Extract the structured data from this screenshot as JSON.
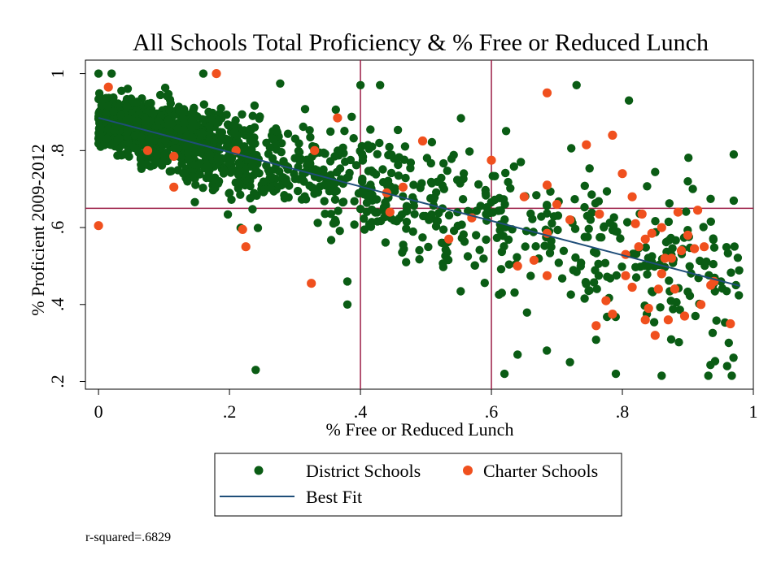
{
  "chart_data": {
    "type": "scatter",
    "title": "All Schools Total Proficiency & % Free or Reduced Lunch",
    "xlabel": "% Free or Reduced Lunch",
    "ylabel": "% Proficient 2009-2012",
    "xlim": [
      -0.02,
      1.0
    ],
    "ylim": [
      0.18,
      1.035
    ],
    "xticks": [
      0,
      0.2,
      0.4,
      0.6,
      0.8,
      1
    ],
    "xtick_labels": [
      "0",
      ".2",
      ".4",
      ".6",
      ".8",
      "1"
    ],
    "yticks": [
      0.2,
      0.4,
      0.6,
      0.8,
      1
    ],
    "ytick_labels": [
      ".2",
      ".4",
      ".6",
      ".8",
      "1"
    ],
    "reference_lines": {
      "x": [
        0.4,
        0.6
      ],
      "y": [
        0.65
      ]
    },
    "colors": {
      "district": "#0a5c14",
      "charter": "#f0501e",
      "fit": "#1f4e79",
      "reference": "#9c1e46"
    },
    "fit": {
      "name": "Best Fit",
      "x": [
        0,
        0.98
      ],
      "y": [
        0.885,
        0.448
      ]
    },
    "series": [
      {
        "name": "District Schools",
        "generated_count": 1500,
        "model": "y = 0.885 - 0.446x + noise; dense cluster at x < 0.35, sparser spread for x > 0.4",
        "points": [
          [
            0.24,
            0.23
          ],
          [
            0.62,
            0.22
          ],
          [
            0.86,
            0.215
          ],
          [
            0.79,
            0.22
          ],
          [
            0.4,
            0.97
          ],
          [
            0.43,
            0.97
          ],
          [
            0.73,
            0.97
          ],
          [
            0.16,
            1.0
          ],
          [
            0.18,
            1.0
          ],
          [
            0.0,
            1.0
          ],
          [
            0.02,
            1.0
          ],
          [
            0.38,
            0.4
          ],
          [
            0.38,
            0.46
          ],
          [
            0.96,
            0.24
          ],
          [
            0.97,
            0.79
          ],
          [
            0.97,
            0.67
          ],
          [
            0.9,
            0.72
          ],
          [
            0.81,
            0.93
          ],
          [
            0.64,
            0.27
          ],
          [
            0.72,
            0.25
          ]
        ]
      },
      {
        "name": "Charter Schools",
        "points": [
          [
            0.0,
            0.605
          ],
          [
            0.015,
            0.965
          ],
          [
            0.18,
            1.0
          ],
          [
            0.075,
            0.8
          ],
          [
            0.115,
            0.785
          ],
          [
            0.115,
            0.705
          ],
          [
            0.21,
            0.8
          ],
          [
            0.22,
            0.595
          ],
          [
            0.225,
            0.55
          ],
          [
            0.33,
            0.8
          ],
          [
            0.325,
            0.455
          ],
          [
            0.365,
            0.885
          ],
          [
            0.44,
            0.69
          ],
          [
            0.445,
            0.64
          ],
          [
            0.465,
            0.705
          ],
          [
            0.495,
            0.825
          ],
          [
            0.535,
            0.57
          ],
          [
            0.57,
            0.625
          ],
          [
            0.6,
            0.775
          ],
          [
            0.64,
            0.5
          ],
          [
            0.65,
            0.68
          ],
          [
            0.665,
            0.515
          ],
          [
            0.685,
            0.95
          ],
          [
            0.685,
            0.71
          ],
          [
            0.685,
            0.585
          ],
          [
            0.685,
            0.475
          ],
          [
            0.7,
            0.66
          ],
          [
            0.745,
            0.815
          ],
          [
            0.76,
            0.345
          ],
          [
            0.765,
            0.635
          ],
          [
            0.775,
            0.41
          ],
          [
            0.785,
            0.375
          ],
          [
            0.785,
            0.84
          ],
          [
            0.8,
            0.74
          ],
          [
            0.805,
            0.475
          ],
          [
            0.815,
            0.445
          ],
          [
            0.815,
            0.68
          ],
          [
            0.82,
            0.61
          ],
          [
            0.825,
            0.55
          ],
          [
            0.83,
            0.635
          ],
          [
            0.835,
            0.57
          ],
          [
            0.835,
            0.36
          ],
          [
            0.84,
            0.39
          ],
          [
            0.845,
            0.585
          ],
          [
            0.85,
            0.32
          ],
          [
            0.855,
            0.44
          ],
          [
            0.86,
            0.48
          ],
          [
            0.865,
            0.52
          ],
          [
            0.87,
            0.36
          ],
          [
            0.875,
            0.52
          ],
          [
            0.88,
            0.44
          ],
          [
            0.885,
            0.64
          ],
          [
            0.89,
            0.54
          ],
          [
            0.895,
            0.37
          ],
          [
            0.9,
            0.58
          ],
          [
            0.91,
            0.545
          ],
          [
            0.915,
            0.645
          ],
          [
            0.92,
            0.4
          ],
          [
            0.925,
            0.55
          ],
          [
            0.94,
            0.46
          ],
          [
            0.965,
            0.35
          ],
          [
            0.935,
            0.45
          ],
          [
            0.72,
            0.62
          ],
          [
            0.805,
            0.53
          ],
          [
            0.86,
            0.6
          ]
        ]
      }
    ],
    "legend": {
      "position": "bottom",
      "entries": [
        "District Schools",
        "Charter Schools",
        "Best Fit"
      ]
    },
    "note": "r-squared=.6829"
  }
}
